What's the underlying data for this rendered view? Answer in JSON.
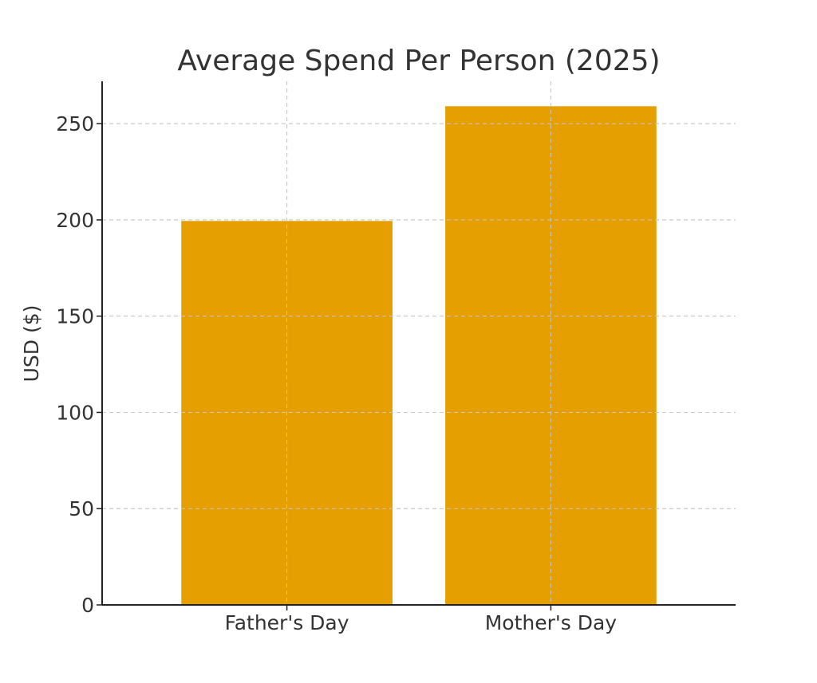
{
  "chart_data": {
    "type": "bar",
    "title": "Average Spend Per Person (2025)",
    "xlabel": "",
    "ylabel": "USD ($)",
    "categories": [
      "Father's Day",
      "Mother's Day"
    ],
    "values": [
      199.45,
      259.04
    ],
    "ylim": [
      0,
      272
    ],
    "yticks": [
      "0",
      "50",
      "100",
      "150",
      "200",
      "250"
    ],
    "grid": true,
    "legend": "none",
    "bar_color": "#E69F00"
  }
}
